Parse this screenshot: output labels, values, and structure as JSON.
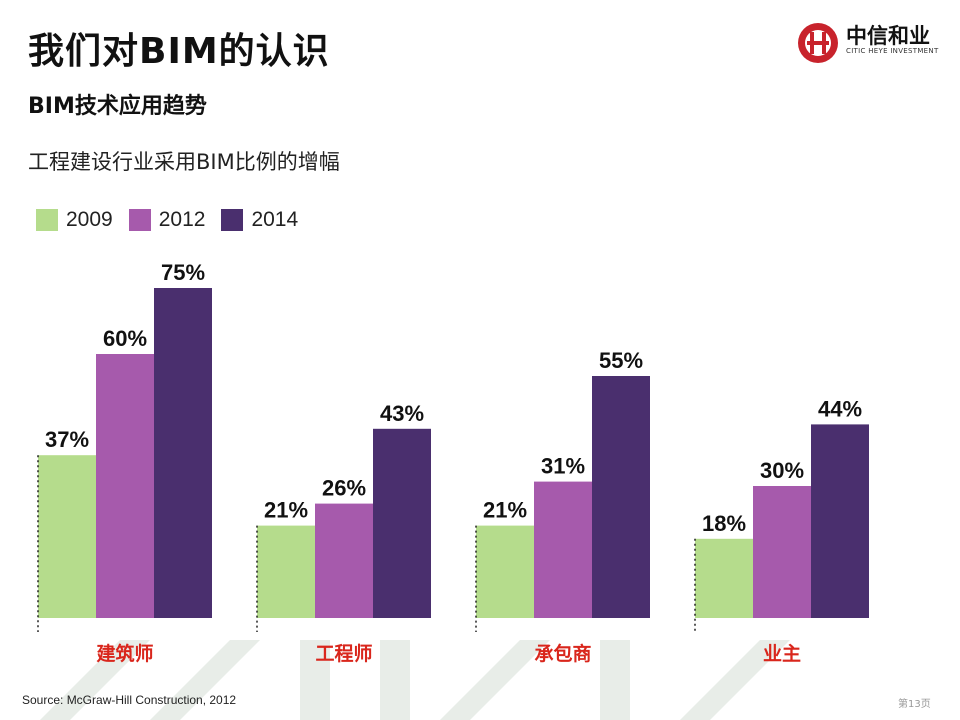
{
  "page": {
    "title": "我们对BIM的认识",
    "subtitle": "BIM技术应用趋势",
    "source": "Source: McGraw-Hill Construction, 2012",
    "page_number": "第13页"
  },
  "logo": {
    "name": "中信和业",
    "tagline": "CITIC HEYE INVESTMENT",
    "color": "#c8232c"
  },
  "colors": {
    "series_2009": "#b5dc8c",
    "series_2012": "#a65aac",
    "series_2014": "#4a2f6e",
    "category_label": "#d9261c",
    "watermark": "#e8ede8"
  },
  "chart_data": {
    "type": "bar",
    "title": "工程建设行业采用BIM比例的增幅",
    "categories": [
      "建筑师",
      "工程师",
      "承包商",
      "业主"
    ],
    "series": [
      {
        "name": "2009",
        "values": [
          37,
          21,
          21,
          18
        ],
        "labels": [
          "37%",
          "21%",
          "21%",
          "18%"
        ]
      },
      {
        "name": "2012",
        "values": [
          60,
          26,
          31,
          30
        ],
        "labels": [
          "60%",
          "26%",
          "31%",
          "30%"
        ]
      },
      {
        "name": "2014",
        "values": [
          75,
          43,
          55,
          44
        ],
        "labels": [
          "75%",
          "43%",
          "55%",
          "44%"
        ]
      }
    ],
    "unit": "%",
    "legend_position": "top-left",
    "ylim": [
      0,
      80
    ],
    "grid": false
  }
}
